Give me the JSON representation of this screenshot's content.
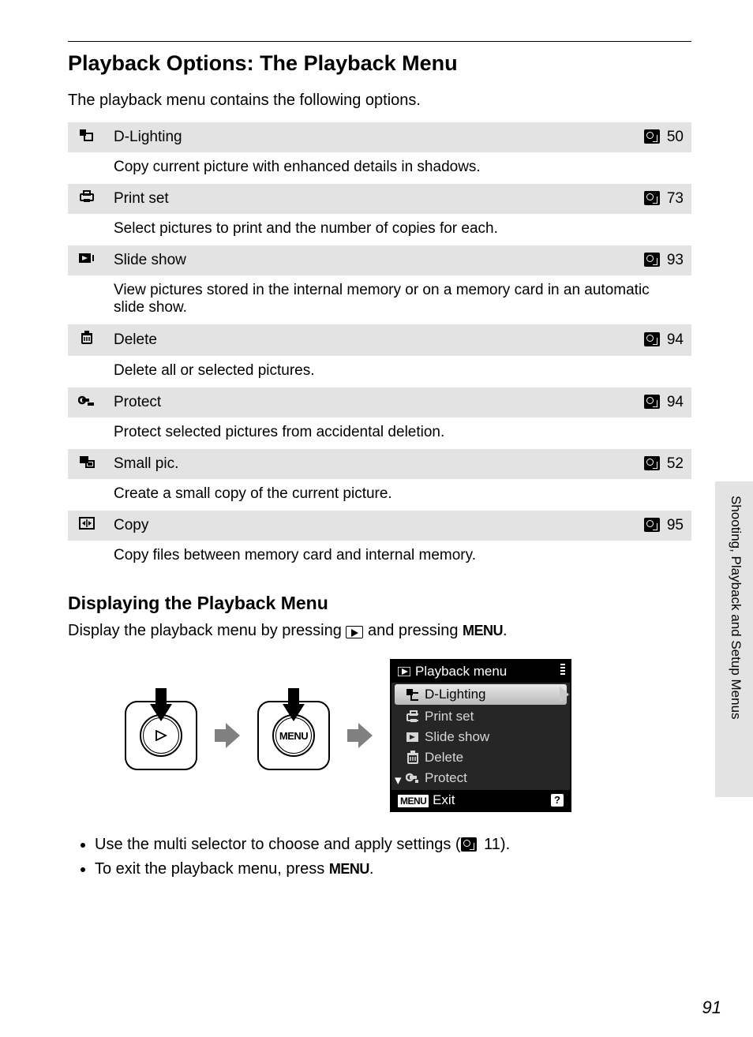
{
  "page": {
    "title": "Playback Options: The Playback Menu",
    "intro": "The playback menu contains the following options.",
    "sidebar_label": "Shooting, Playback and Setup Menus",
    "page_number": "91"
  },
  "options": [
    {
      "icon": "d-lighting-icon",
      "label": "D-Lighting",
      "page": "50",
      "desc": "Copy current picture with enhanced details in shadows."
    },
    {
      "icon": "print-set-icon",
      "label": "Print set",
      "page": "73",
      "desc": "Select pictures to print and the number of copies for each."
    },
    {
      "icon": "slide-show-icon",
      "label": "Slide show",
      "page": "93",
      "desc": "View pictures stored in the internal memory or on a memory card in an automatic slide show."
    },
    {
      "icon": "delete-icon",
      "label": "Delete",
      "page": "94",
      "desc": "Delete all or selected pictures."
    },
    {
      "icon": "protect-icon",
      "label": "Protect",
      "page": "94",
      "desc": "Protect selected pictures from accidental deletion."
    },
    {
      "icon": "small-pic-icon",
      "label": "Small pic.",
      "page": "52",
      "desc": "Create a small copy of the current picture."
    },
    {
      "icon": "copy-icon",
      "label": "Copy",
      "page": "95",
      "desc": "Copy files between memory card and internal memory."
    }
  ],
  "section2": {
    "heading": "Displaying the Playback Menu",
    "text_pre": "Display the playback menu by pressing ",
    "text_mid": " and pressing ",
    "text_post": ".",
    "menu_label": "MENU"
  },
  "lcd": {
    "title": "Playback menu",
    "items": [
      {
        "label": "D-Lighting",
        "selected": true
      },
      {
        "label": "Print set",
        "selected": false
      },
      {
        "label": "Slide show",
        "selected": false
      },
      {
        "label": "Delete",
        "selected": false
      },
      {
        "label": "Protect",
        "selected": false
      }
    ],
    "footer_menu": "MENU",
    "footer_exit": "Exit",
    "footer_help": "?"
  },
  "notes": {
    "n1_pre": "Use the multi selector to choose and apply settings (",
    "n1_page": " 11",
    "n1_post": ").",
    "n2_pre": "To exit the playback menu, press ",
    "n2_post": "."
  }
}
